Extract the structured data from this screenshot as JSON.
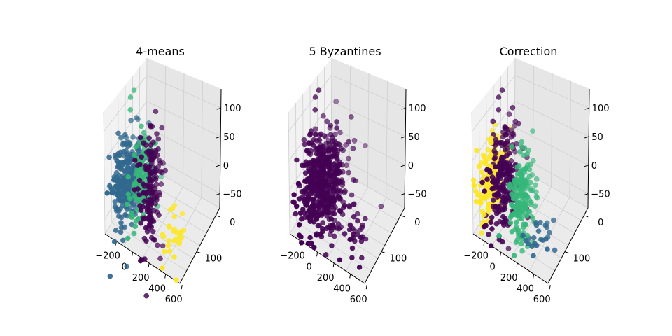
{
  "chart_data": [
    {
      "type": "scatter",
      "title": "4-means",
      "z_ticks": [
        "100",
        "50",
        "0",
        "−50"
      ],
      "x_ticks": [
        "−200",
        "0",
        "200",
        "400",
        "600"
      ],
      "y_ticks": [
        "100",
        "0"
      ],
      "zlim": [
        -60,
        120
      ],
      "xlim": [
        -250,
        650
      ],
      "ylim": [
        -30,
        160
      ],
      "grid": true,
      "colors": {
        "purple": "#440154",
        "blue": "#31688e",
        "green": "#35b779",
        "yellow": "#fde725"
      },
      "clusters": [
        {
          "color": "blue",
          "count": 240,
          "center": [
            -160,
            40,
            -10
          ],
          "spread": [
            60,
            30,
            30
          ]
        },
        {
          "color": "green",
          "count": 120,
          "center": [
            20,
            40,
            10
          ],
          "spread": [
            30,
            25,
            30
          ]
        },
        {
          "color": "purple",
          "count": 160,
          "center": [
            120,
            40,
            0
          ],
          "spread": [
            30,
            25,
            40
          ]
        },
        {
          "color": "yellow",
          "count": 28,
          "center": [
            420,
            20,
            -40
          ],
          "spread": [
            70,
            25,
            12
          ]
        }
      ],
      "outliers": [
        {
          "color": "blue",
          "points": [
            [
              -180,
              40,
              55
            ],
            [
              -200,
              45,
              38
            ],
            [
              -170,
              40,
              32
            ],
            [
              -190,
              50,
              20
            ],
            [
              -150,
              40,
              10
            ]
          ]
        },
        {
          "color": "green",
          "points": [
            [
              -120,
              60,
              115
            ],
            [
              -150,
              55,
              105
            ],
            [
              -140,
              50,
              90
            ],
            [
              -60,
              40,
              8
            ]
          ]
        }
      ]
    },
    {
      "type": "scatter",
      "title": "5 Byzantines",
      "z_ticks": [
        "100",
        "50",
        "0",
        "−50"
      ],
      "x_ticks": [
        "−200",
        "0",
        "200",
        "400",
        "600"
      ],
      "y_ticks": [
        "100",
        "0"
      ],
      "zlim": [
        -60,
        120
      ],
      "xlim": [
        -250,
        650
      ],
      "ylim": [
        -30,
        160
      ],
      "grid": true,
      "colors": {
        "purple": "#440154"
      },
      "clusters": [
        {
          "color": "purple",
          "count": 520,
          "center": [
            -20,
            40,
            -5
          ],
          "spread": [
            110,
            35,
            35
          ]
        },
        {
          "color": "purple",
          "count": 30,
          "center": [
            380,
            30,
            -40
          ],
          "spread": [
            60,
            25,
            12
          ]
        }
      ],
      "outliers": [
        {
          "color": "purple",
          "points": [
            [
              -120,
              60,
              115
            ],
            [
              -150,
              55,
              105
            ],
            [
              -140,
              50,
              90
            ],
            [
              -180,
              40,
              55
            ],
            [
              -200,
              45,
              38
            ],
            [
              -170,
              40,
              32
            ]
          ]
        }
      ]
    },
    {
      "type": "scatter",
      "title": "Correction",
      "z_ticks": [
        "100",
        "50",
        "0",
        "−50"
      ],
      "x_ticks": [
        "−200",
        "0",
        "200",
        "400",
        "600"
      ],
      "y_ticks": [
        "100",
        "0"
      ],
      "zlim": [
        -60,
        120
      ],
      "xlim": [
        -250,
        650
      ],
      "ylim": [
        -30,
        160
      ],
      "grid": true,
      "colors": {
        "purple": "#440154",
        "blue": "#31688e",
        "green": "#35b779",
        "yellow": "#fde725"
      },
      "clusters": [
        {
          "color": "yellow",
          "count": 150,
          "center": [
            -220,
            40,
            -10
          ],
          "spread": [
            40,
            30,
            30
          ]
        },
        {
          "color": "purple",
          "count": 220,
          "center": [
            -60,
            40,
            0
          ],
          "spread": [
            60,
            30,
            35
          ]
        },
        {
          "color": "green",
          "count": 170,
          "center": [
            150,
            40,
            -10
          ],
          "spread": [
            35,
            25,
            30
          ]
        },
        {
          "color": "blue",
          "count": 24,
          "center": [
            420,
            20,
            -40
          ],
          "spread": [
            70,
            25,
            12
          ]
        }
      ],
      "outliers": [
        {
          "color": "purple",
          "points": [
            [
              -120,
              60,
              115
            ],
            [
              -150,
              55,
              105
            ],
            [
              -140,
              50,
              90
            ],
            [
              -180,
              40,
              55
            ],
            [
              -200,
              45,
              38
            ],
            [
              -170,
              40,
              32
            ],
            [
              -150,
              40,
              10
            ]
          ]
        },
        {
          "color": "green",
          "points": [
            [
              200,
              30,
              -45
            ],
            [
              260,
              25,
              -50
            ]
          ]
        }
      ]
    }
  ]
}
